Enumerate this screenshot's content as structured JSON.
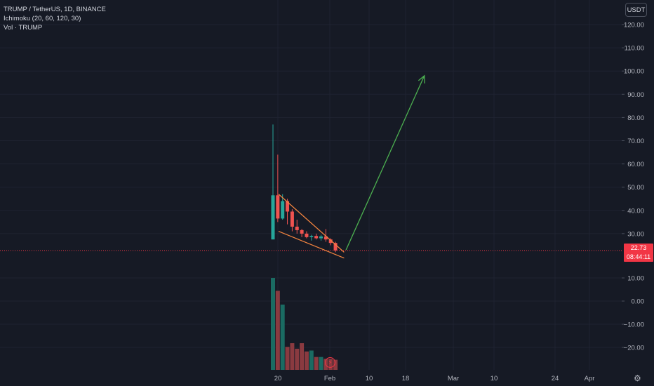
{
  "legend": {
    "symbol_line": "TRUMP / TetherUS, 1D, BINANCE",
    "indicator_line": "Ichimoku (20, 60, 120, 30)",
    "volume_line": "Vol · TRUMP"
  },
  "currency_button": "USDT",
  "current_price": {
    "price": "22.73",
    "countdown": "08:44:11"
  },
  "colors": {
    "background": "#161a25",
    "grid": "#1f2331",
    "up": "#26a69a",
    "down": "#ef5350",
    "up_volume": "#1a6b62",
    "down_volume": "#8a3a40",
    "wedge": "#f5853f",
    "arrow": "#4caf50",
    "price_line": "#f23645",
    "axis_text": "#b2b5be"
  },
  "icons": {
    "settings": "gear-icon",
    "lightning": "lightning-icon"
  },
  "settings_glyph": "⚙",
  "lightning_glyph": "⚡",
  "chart_data": {
    "type": "candlestick",
    "price_axis": {
      "ticks": [
        "120.00",
        "110.00",
        "100.00",
        "90.00",
        "80.00",
        "70.00",
        "60.00",
        "50.00",
        "40.00",
        "30.00",
        "10.00",
        "0.00",
        "−10.00",
        "−20.00"
      ],
      "range": [
        -30,
        125
      ]
    },
    "time_axis": {
      "ticks": [
        "20",
        "Feb",
        "10",
        "18",
        "Mar",
        "10",
        "24",
        "Apr"
      ]
    },
    "last_price": 22.73,
    "candles": [
      {
        "o": 27.5,
        "h": 77.0,
        "l": 27.5,
        "c": 46.5
      },
      {
        "o": 46.5,
        "h": 64.0,
        "l": 35.0,
        "c": 36.5
      },
      {
        "o": 36.5,
        "h": 47.0,
        "l": 36.0,
        "c": 44.0
      },
      {
        "o": 44.0,
        "h": 45.0,
        "l": 34.0,
        "c": 39.5
      },
      {
        "o": 39.5,
        "h": 40.5,
        "l": 31.0,
        "c": 33.0
      },
      {
        "o": 33.0,
        "h": 36.0,
        "l": 30.0,
        "c": 31.5
      },
      {
        "o": 31.5,
        "h": 32.0,
        "l": 28.5,
        "c": 30.0
      },
      {
        "o": 30.0,
        "h": 31.0,
        "l": 28.0,
        "c": 28.5
      },
      {
        "o": 28.5,
        "h": 29.5,
        "l": 27.0,
        "c": 29.0
      },
      {
        "o": 29.0,
        "h": 30.0,
        "l": 27.5,
        "c": 28.0
      },
      {
        "o": 28.0,
        "h": 29.5,
        "l": 27.0,
        "c": 28.8
      },
      {
        "o": 28.8,
        "h": 32.0,
        "l": 26.5,
        "c": 27.5
      },
      {
        "o": 27.5,
        "h": 28.0,
        "l": 25.0,
        "c": 26.0
      },
      {
        "o": 26.0,
        "h": 26.5,
        "l": 22.0,
        "c": 22.73
      }
    ],
    "volume_relative": [
      1.0,
      0.86,
      0.71,
      0.25,
      0.29,
      0.23,
      0.29,
      0.2,
      0.21,
      0.14,
      0.14,
      0.12,
      0.12,
      0.11
    ],
    "annotations": {
      "falling_wedge": {
        "upper": [
          [
            0,
            47
          ],
          [
            14.8,
            22
          ]
        ],
        "lower": [
          [
            0,
            31
          ],
          [
            14.8,
            19.5
          ]
        ]
      },
      "target_arrow": {
        "from": [
          15.2,
          23
        ],
        "to": [
          31.5,
          98
        ]
      }
    }
  }
}
